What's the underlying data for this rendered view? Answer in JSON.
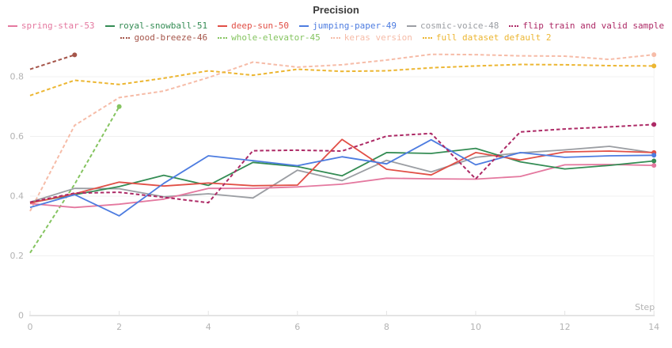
{
  "chart_data": {
    "type": "line",
    "title": "Precision",
    "xlabel": "Step",
    "ylabel": "",
    "xlim": [
      0,
      14
    ],
    "ylim": [
      0,
      0.9
    ],
    "grid": "horizontal",
    "legend_position": "top",
    "x_ticks": [
      0,
      2,
      4,
      6,
      8,
      10,
      12,
      14
    ],
    "x_tick_labels": [
      "0",
      "2",
      "4",
      "6",
      "8",
      "10",
      "12",
      "14"
    ],
    "y_ticks": [
      0,
      0.2,
      0.4,
      0.6,
      0.8
    ],
    "y_tick_labels": [
      "0",
      "0.2",
      "0.4",
      "0.6",
      "0.8"
    ],
    "series": [
      {
        "name": "spring-star-53",
        "color": "#e4789f",
        "style": "solid",
        "x": [
          0,
          1,
          2,
          3,
          4,
          5,
          6,
          7,
          8,
          9,
          10,
          11,
          12,
          13,
          14
        ],
        "values": [
          0.375,
          0.362,
          0.373,
          0.39,
          0.426,
          0.426,
          0.431,
          0.44,
          0.46,
          0.458,
          0.457,
          0.466,
          0.505,
          0.506,
          0.503
        ]
      },
      {
        "name": "royal-snowball-51",
        "color": "#348c54",
        "style": "solid",
        "x": [
          0,
          1,
          2,
          3,
          4,
          5,
          6,
          7,
          8,
          9,
          10,
          11,
          12,
          13,
          14
        ],
        "values": [
          0.378,
          0.405,
          0.432,
          0.47,
          0.436,
          0.513,
          0.499,
          0.468,
          0.546,
          0.543,
          0.56,
          0.515,
          0.491,
          0.503,
          0.518
        ]
      },
      {
        "name": "deep-sun-50",
        "color": "#e14f46",
        "style": "solid",
        "x": [
          0,
          1,
          2,
          3,
          4,
          5,
          6,
          7,
          8,
          9,
          10,
          11,
          12,
          13,
          14
        ],
        "values": [
          0.377,
          0.408,
          0.447,
          0.434,
          0.444,
          0.435,
          0.437,
          0.59,
          0.49,
          0.471,
          0.546,
          0.521,
          0.548,
          0.551,
          0.546
        ]
      },
      {
        "name": "jumping-paper-49",
        "color": "#4d7ce0",
        "style": "solid",
        "x": [
          0,
          1,
          2,
          3,
          4,
          5,
          6,
          7,
          8,
          9,
          10,
          11,
          12,
          13,
          14
        ],
        "values": [
          0.362,
          0.405,
          0.334,
          0.443,
          0.535,
          0.519,
          0.502,
          0.532,
          0.508,
          0.589,
          0.505,
          0.546,
          0.53,
          0.535,
          0.537
        ]
      },
      {
        "name": "cosmic-voice-48",
        "color": "#9b9ea3",
        "style": "solid",
        "x": [
          0,
          1,
          2,
          3,
          4,
          5,
          6,
          7,
          8,
          9,
          10,
          11,
          12,
          13,
          14
        ],
        "values": [
          0.38,
          0.426,
          0.425,
          0.398,
          0.408,
          0.394,
          0.487,
          0.452,
          0.52,
          0.481,
          0.53,
          0.545,
          0.555,
          0.567,
          0.545
        ]
      },
      {
        "name": "flip train and valid sample",
        "color": "#ad2a66",
        "style": "dashed",
        "x": [
          0,
          1,
          2,
          3,
          4,
          5,
          6,
          7,
          8,
          9,
          10,
          11,
          12,
          13,
          14
        ],
        "values": [
          0.38,
          0.41,
          0.413,
          0.396,
          0.378,
          0.552,
          0.554,
          0.551,
          0.601,
          0.61,
          0.458,
          0.615,
          0.625,
          0.632,
          0.64
        ]
      },
      {
        "name": "good-breeze-46",
        "color": "#a5554a",
        "style": "dashed",
        "x": [
          0,
          1
        ],
        "values": [
          0.825,
          0.873
        ]
      },
      {
        "name": "whole-elevator-45",
        "color": "#85c460",
        "style": "dashed",
        "x": [
          0,
          1,
          2
        ],
        "values": [
          0.21,
          0.44,
          0.7
        ]
      },
      {
        "name": "keras version",
        "color": "#f6bca8",
        "style": "dashed",
        "x": [
          0,
          1,
          2,
          3,
          4,
          5,
          6,
          7,
          8,
          9,
          10,
          11,
          12,
          13,
          14
        ],
        "values": [
          0.35,
          0.637,
          0.73,
          0.752,
          0.797,
          0.849,
          0.832,
          0.84,
          0.856,
          0.875,
          0.874,
          0.87,
          0.869,
          0.858,
          0.874
        ]
      },
      {
        "name": "full dataset default 2",
        "color": "#ecb632",
        "style": "dashed",
        "x": [
          0,
          1,
          2,
          3,
          4,
          5,
          6,
          7,
          8,
          9,
          10,
          11,
          12,
          13,
          14
        ],
        "values": [
          0.737,
          0.788,
          0.774,
          0.795,
          0.82,
          0.805,
          0.825,
          0.818,
          0.82,
          0.83,
          0.836,
          0.841,
          0.84,
          0.837,
          0.836
        ]
      }
    ]
  }
}
